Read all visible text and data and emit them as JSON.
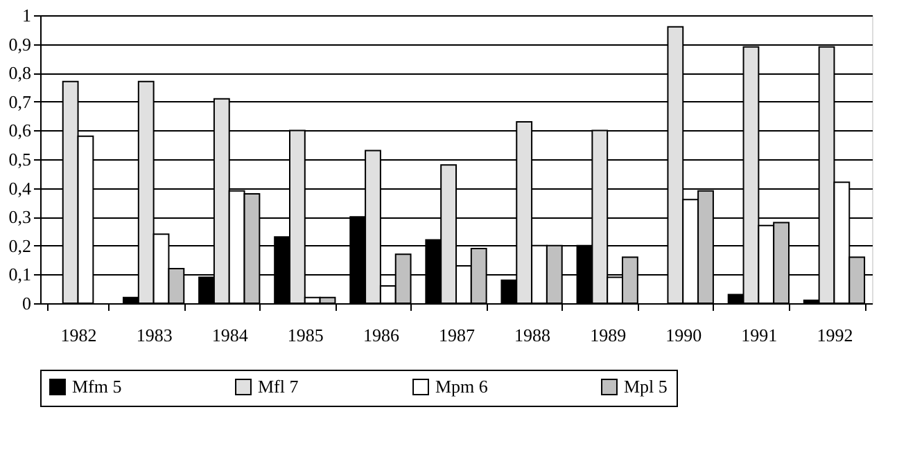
{
  "chart_data": {
    "type": "bar",
    "categories": [
      "1982",
      "1983",
      "1984",
      "1985",
      "1986",
      "1987",
      "1988",
      "1989",
      "1990",
      "1991",
      "1992"
    ],
    "series": [
      {
        "name": "Mfm 5",
        "color": "#000000",
        "values": [
          null,
          0.02,
          0.09,
          0.23,
          0.3,
          0.22,
          0.08,
          0.2,
          null,
          0.03,
          0.01
        ]
      },
      {
        "name": "Mfl 7",
        "color": "#e0e0e0",
        "values": [
          0.77,
          0.77,
          0.71,
          0.6,
          0.53,
          0.48,
          0.63,
          0.6,
          0.96,
          0.89,
          0.89
        ]
      },
      {
        "name": "Mpm 6",
        "color": "#ffffff",
        "values": [
          0.58,
          0.24,
          0.39,
          0.02,
          0.06,
          0.13,
          0.2,
          0.09,
          0.36,
          0.27,
          0.42
        ]
      },
      {
        "name": "Mpl 5",
        "color": "#c0c0c0",
        "values": [
          null,
          0.12,
          0.38,
          0.02,
          0.17,
          0.19,
          0.2,
          0.16,
          0.39,
          0.28,
          0.16
        ]
      }
    ],
    "ylim": [
      0,
      1
    ],
    "yticks": [
      0,
      {
        "value": 0.1,
        "label": "0,1"
      },
      {
        "value": 0.2,
        "label": "0,2"
      },
      {
        "value": 0.3,
        "label": "0,3"
      },
      {
        "value": 0.4,
        "label": "0,4"
      },
      {
        "value": 0.5,
        "label": "0,5"
      },
      {
        "value": 0.6,
        "label": "0,6"
      },
      {
        "value": 0.7,
        "label": "0,7"
      },
      {
        "value": 0.8,
        "label": "0,8"
      },
      {
        "value": 0.9,
        "label": "0,9"
      },
      1
    ],
    "grid": "y",
    "legend": "bottom"
  }
}
